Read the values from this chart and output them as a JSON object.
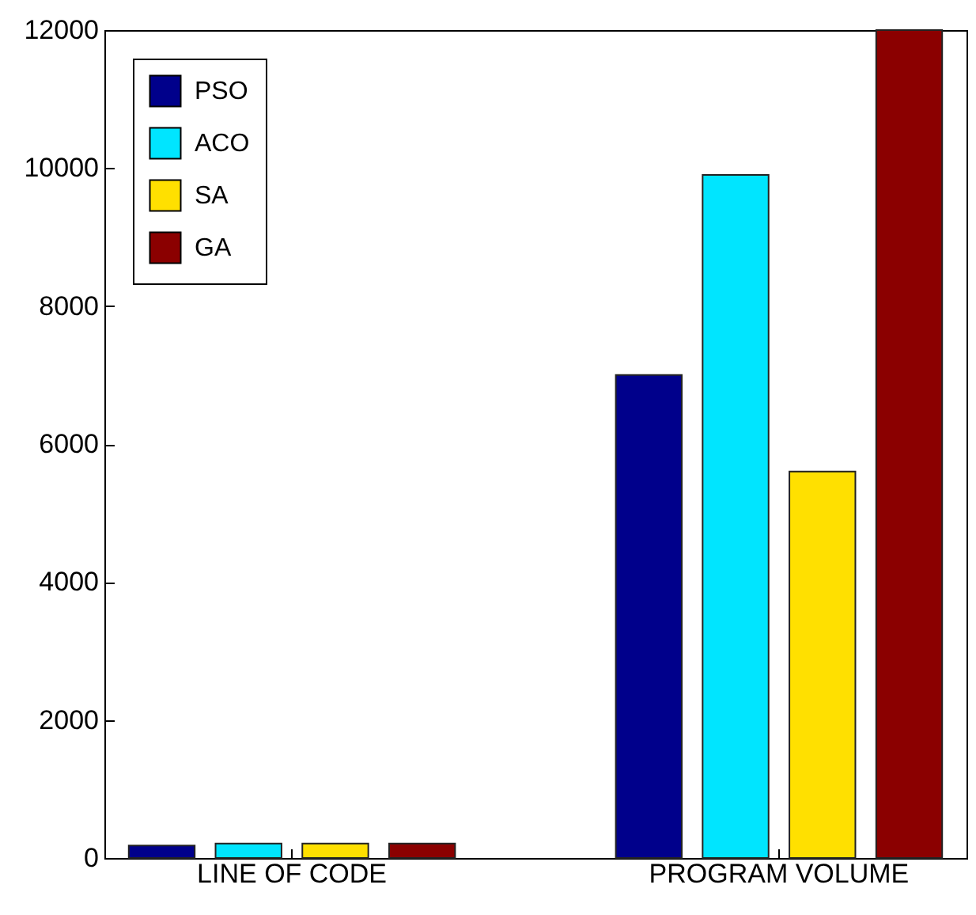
{
  "chart_data": {
    "type": "bar",
    "categories": [
      "LINE OF CODE",
      "PROGRAM VOLUME"
    ],
    "series": [
      {
        "name": "PSO",
        "color": "#00008b",
        "values": [
          180,
          7000
        ]
      },
      {
        "name": "ACO",
        "color": "#00e5ff",
        "values": [
          210,
          9900
        ]
      },
      {
        "name": "SA",
        "color": "#ffe000",
        "values": [
          210,
          5600
        ]
      },
      {
        "name": "GA",
        "color": "#8b0000",
        "values": [
          210,
          12000
        ]
      }
    ],
    "ylim": [
      0,
      12000
    ],
    "yticks": [
      0,
      2000,
      4000,
      6000,
      8000,
      10000,
      12000
    ],
    "grid": false,
    "legend": "top left"
  }
}
